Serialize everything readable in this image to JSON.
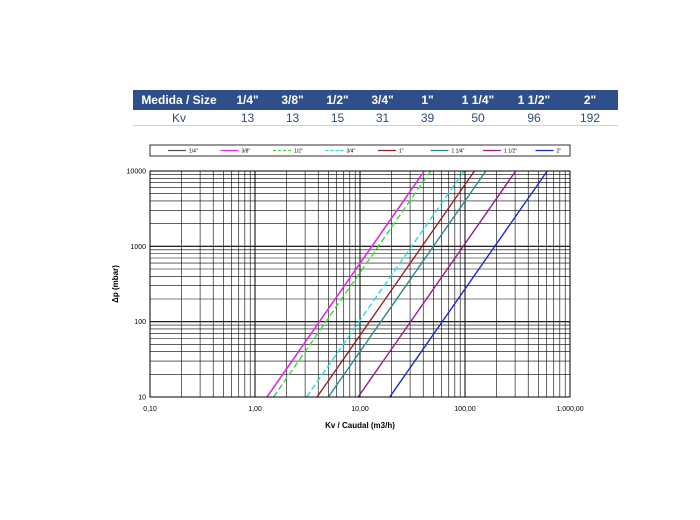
{
  "table": {
    "header_label": "Medida / Size",
    "row_label": "Kv",
    "sizes": [
      "1/4\"",
      "3/8\"",
      "1/2\"",
      "3/4\"",
      "1\"",
      "1 1/4\"",
      "1 1/2\"",
      "2\""
    ],
    "kv": [
      "13",
      "13",
      "15",
      "31",
      "39",
      "50",
      "96",
      "192"
    ]
  },
  "chart_data": {
    "type": "line",
    "xscale": "log",
    "yscale": "log",
    "xlim": [
      0.1,
      1000
    ],
    "ylim": [
      10,
      10000
    ],
    "xlabel": "Kv / Caudal (m3/h)",
    "ylabel": "Δp (mbar)",
    "x_ticks": [
      "0,10",
      "1,00",
      "10,00",
      "100,00",
      "1.000,00"
    ],
    "y_ticks": [
      "10",
      "100",
      "1000",
      "10000"
    ],
    "grid": true,
    "legend_position": "top",
    "series": [
      {
        "name": "1/4\"",
        "color": "#555555",
        "dash": "solid",
        "points": [
          [
            1.3,
            10
          ],
          [
            41,
            10000
          ]
        ]
      },
      {
        "name": "3/8\"",
        "color": "#ee22ee",
        "dash": "solid",
        "points": [
          [
            1.3,
            10
          ],
          [
            41,
            10000
          ]
        ]
      },
      {
        "name": "1/2\"",
        "color": "#33dd33",
        "dash": "dashed",
        "points": [
          [
            1.5,
            10
          ],
          [
            47,
            10000
          ]
        ]
      },
      {
        "name": "3/4\"",
        "color": "#22dddd",
        "dash": "dashed",
        "points": [
          [
            3.1,
            10
          ],
          [
            98,
            10000
          ]
        ]
      },
      {
        "name": "1\"",
        "color": "#992222",
        "dash": "solid",
        "points": [
          [
            3.9,
            10
          ],
          [
            123,
            10000
          ]
        ]
      },
      {
        "name": "1 1/4\"",
        "color": "#2a8a8a",
        "dash": "solid",
        "points": [
          [
            5,
            10
          ],
          [
            158,
            10000
          ]
        ]
      },
      {
        "name": "1 1/2\"",
        "color": "#9a1a8a",
        "dash": "solid",
        "points": [
          [
            9.6,
            10
          ],
          [
            304,
            10000
          ]
        ]
      },
      {
        "name": "2\"",
        "color": "#1a2acc",
        "dash": "solid",
        "points": [
          [
            19.2,
            10
          ],
          [
            607,
            10000
          ]
        ]
      }
    ]
  }
}
